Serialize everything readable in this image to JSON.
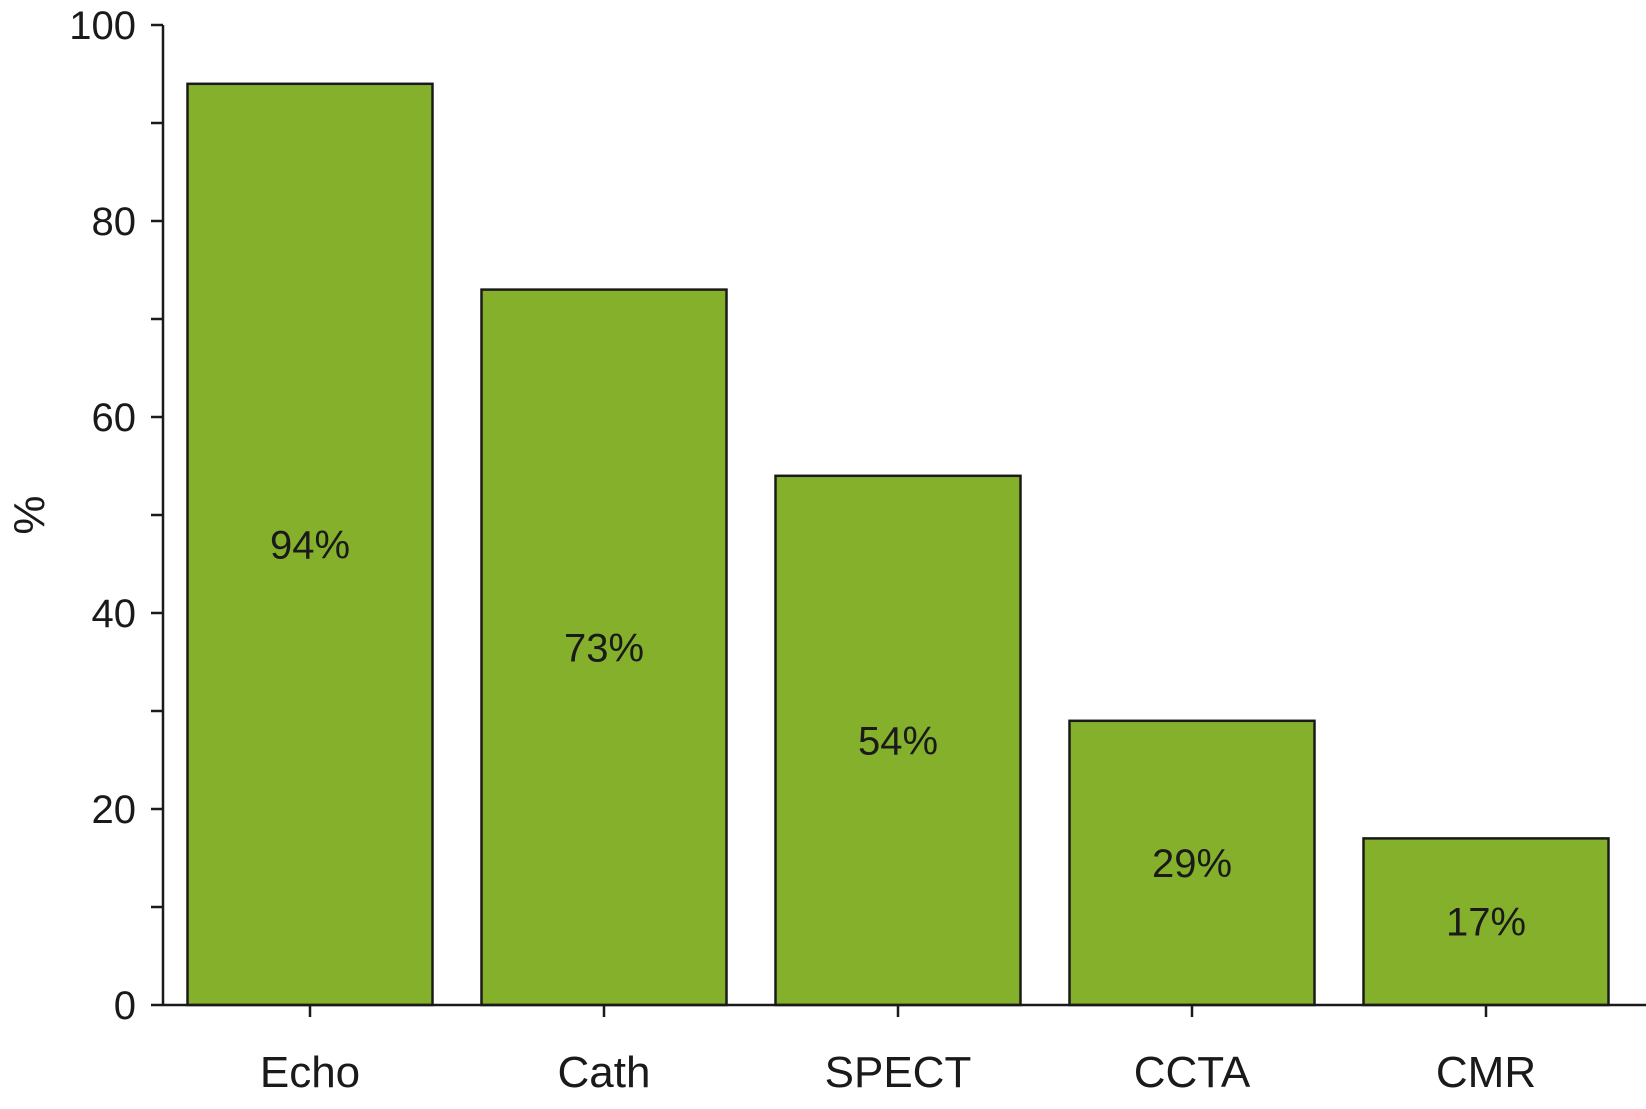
{
  "chart_data": {
    "type": "bar",
    "title": "",
    "xlabel": "",
    "ylabel": "%",
    "categories": [
      "Echo",
      "Cath",
      "SPECT",
      "CCTA",
      "CMR"
    ],
    "values": [
      94,
      73,
      54,
      29,
      17
    ],
    "data_labels": [
      "94%",
      "73%",
      "54%",
      "29%",
      "17%"
    ],
    "ylim": [
      0,
      100
    ],
    "yticks": [
      0,
      20,
      40,
      60,
      80,
      100
    ],
    "yticks_minor": [
      10,
      30,
      50,
      70,
      90
    ],
    "grid": false,
    "legend": "none",
    "bar_color": "#84b02c",
    "bar_edge_color": "#1a1a1a"
  }
}
